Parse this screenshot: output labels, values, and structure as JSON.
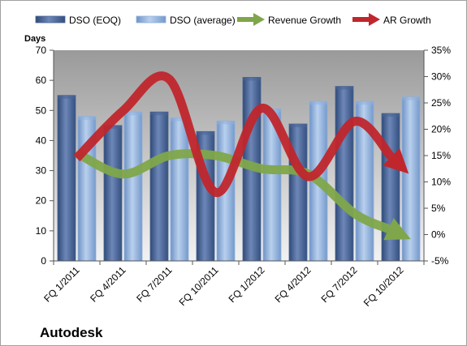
{
  "chart_data": {
    "type": "bar",
    "company": "Autodesk",
    "ylabel": "Days",
    "ylim": [
      0,
      70
    ],
    "yticks": [
      0,
      10,
      20,
      30,
      40,
      50,
      60,
      70
    ],
    "y2lim": [
      -5,
      35
    ],
    "y2ticks": [
      "-5%",
      "0%",
      "5%",
      "10%",
      "15%",
      "20%",
      "25%",
      "30%",
      "35%"
    ],
    "y2values": [
      -5,
      0,
      5,
      10,
      15,
      20,
      25,
      30,
      35
    ],
    "legend_position": "top",
    "grid": false,
    "categories": [
      "FQ 1/2011",
      "FQ 4/2011",
      "FQ 7/2011",
      "FQ 10/2011",
      "FQ 1/2012",
      "FQ 4/2012",
      "FQ 7/2012",
      "FQ 10/2012"
    ],
    "series": [
      {
        "name": "DSO (EOQ)",
        "type": "bar",
        "axis": "left",
        "color": "#4a6494",
        "values": [
          55,
          45,
          49.5,
          43,
          61,
          45.5,
          58,
          49
        ]
      },
      {
        "name": "DSO (average)",
        "type": "bar",
        "axis": "left",
        "color": "#8fb0dc",
        "values": [
          48,
          49.5,
          47.5,
          46.5,
          50.5,
          53,
          53,
          54.5
        ]
      },
      {
        "name": "Revenue Growth",
        "type": "line",
        "axis": "right",
        "color": "#7fa64a",
        "values": [
          15.5,
          11.5,
          15,
          15,
          12.5,
          11.5,
          4,
          0
        ]
      },
      {
        "name": "AR Growth",
        "type": "line",
        "axis": "right",
        "color": "#c0262c",
        "values": [
          14.5,
          23.5,
          29.5,
          8,
          24,
          11,
          21.5,
          13
        ]
      }
    ]
  }
}
